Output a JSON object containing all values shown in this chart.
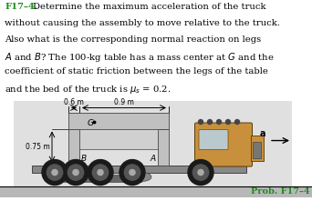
{
  "bg_color": "#ffffff",
  "green_color": "#228B22",
  "truck_cab_color": "#c8903c",
  "truck_bed_color": "#888888",
  "table_color": "#c0c0c0",
  "table_dark": "#a0a0a0",
  "ground_color": "#c8c8c8",
  "prob_label": "Prob. F17–4",
  "text_lines": [
    "F17–4.  Determine the maximum acceleration of the truck",
    "without causing the assembly to move relative to the truck.",
    "Also what is the corresponding normal reaction on legs",
    "A and B? The 100-kg table has a mass center at G and the",
    "coefficient of static friction between the legs of the table",
    "and the bed of the truck is μs = 0.2."
  ]
}
